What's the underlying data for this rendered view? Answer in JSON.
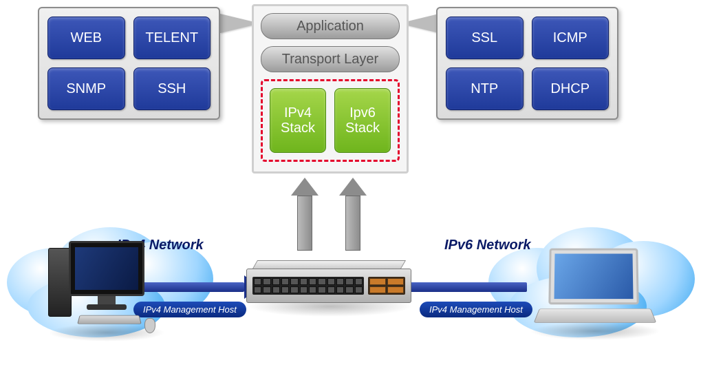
{
  "left_panel": {
    "boxes": [
      "WEB",
      "TELENT",
      "SNMP",
      "SSH"
    ],
    "box_color": "#27409e",
    "text_color": "#ffffff"
  },
  "right_panel": {
    "boxes": [
      "SSL",
      "ICMP",
      "NTP",
      "DHCP"
    ],
    "box_color": "#27409e",
    "text_color": "#ffffff"
  },
  "center_panel": {
    "application_label": "Application",
    "transport_label": "Transport Layer",
    "ipv4_label": "IPv4\nStack",
    "ipv6_label": "Ipv6\nStack",
    "green_color": "#7fbf2a",
    "dashed_color": "#e4002b"
  },
  "network": {
    "ipv4_label": "IPv4 Network",
    "ipv6_label": "IPv6 Network",
    "ipv4_badge": "IPv4 Management Host",
    "ipv6_badge": "IPv4 Management Host",
    "badge_bg": "#123a9a",
    "arrow_color": "#2a3f98",
    "cloud_color": "#5ab4f2"
  },
  "colors": {
    "panel_border": "#8c8c8c",
    "panel_bg": "#e6e6e6",
    "pill_bg": "#b0b0b0"
  }
}
